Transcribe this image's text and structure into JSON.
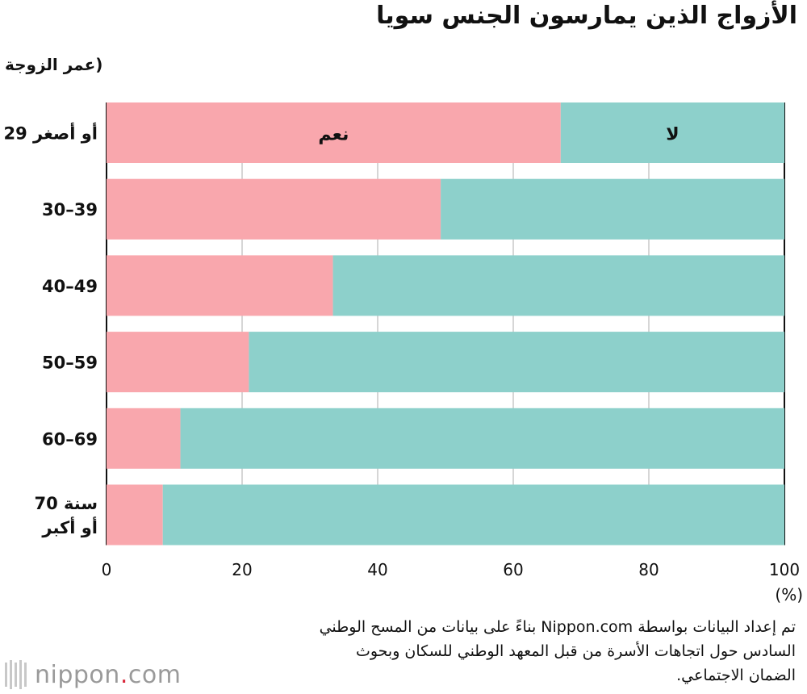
{
  "chart_data": {
    "type": "bar",
    "orientation": "horizontal",
    "stacked": true,
    "title": "الأزواج الذين يمارسون الجنس سويا",
    "ylabel": "(عمر الزوجة",
    "xlabel": "(%)",
    "categories": [
      "29 أو أصغر",
      "30–39",
      "40–49",
      "50–59",
      "60–69",
      "70 سنة أو أكبر"
    ],
    "category_lines": [
      [
        "29 أو أصغر"
      ],
      [
        "30–39"
      ],
      [
        "40–49"
      ],
      [
        "50–59"
      ],
      [
        "60–69"
      ],
      [
        "70 سنة",
        "أو أكبر"
      ]
    ],
    "series": [
      {
        "name": "نعم",
        "color": "#f9a7ad",
        "values": [
          67,
          49.3,
          33.4,
          21,
          10.9,
          8.3
        ]
      },
      {
        "name": "لا",
        "color": "#8dd0cb",
        "values": [
          33,
          50.7,
          66.6,
          79,
          89.1,
          91.7
        ]
      }
    ],
    "xlim": [
      0,
      100
    ],
    "xticks": [
      0,
      20,
      40,
      60,
      80,
      100
    ],
    "grid": true
  },
  "source_lines": [
    "تم إعداد البيانات بواسطة Nippon.com بناءً على بيانات من المسح الوطني",
    "السادس حول اتجاهات الأسرة من قبل المعهد الوطني للسكان وبحوث",
    "الضمان الاجتماعي."
  ],
  "logo": {
    "name": "nippon",
    "dot": ".",
    "suffix": "com"
  }
}
